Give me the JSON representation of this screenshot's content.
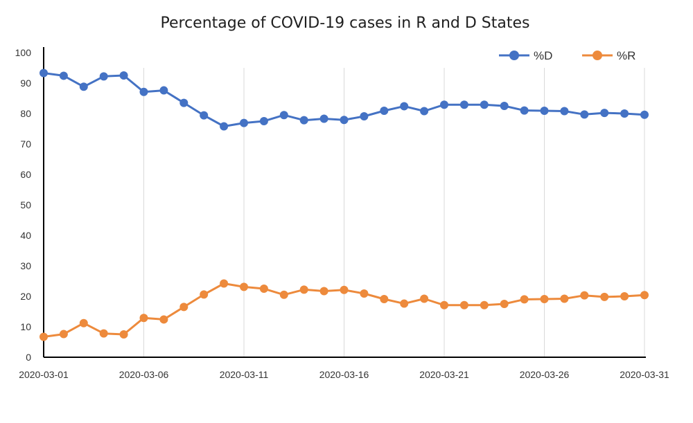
{
  "chart_data": {
    "type": "line",
    "title": "Percentage of COVID-19 cases in R and D States",
    "xlabel": "",
    "ylabel": "",
    "ylim": [
      0,
      100
    ],
    "y_ticks": [
      0,
      10,
      20,
      30,
      40,
      50,
      60,
      70,
      80,
      90,
      100
    ],
    "x_tick_labels": [
      "2020-03-01",
      "2020-03-06",
      "2020-03-11",
      "2020-03-16",
      "2020-03-21",
      "2020-03-26",
      "2020-03-31"
    ],
    "grid": "vertical",
    "legend_position": "top-right",
    "x": [
      "2020-03-01",
      "2020-03-02",
      "2020-03-03",
      "2020-03-04",
      "2020-03-05",
      "2020-03-06",
      "2020-03-07",
      "2020-03-08",
      "2020-03-09",
      "2020-03-10",
      "2020-03-11",
      "2020-03-12",
      "2020-03-13",
      "2020-03-14",
      "2020-03-15",
      "2020-03-16",
      "2020-03-17",
      "2020-03-18",
      "2020-03-19",
      "2020-03-20",
      "2020-03-21",
      "2020-03-22",
      "2020-03-23",
      "2020-03-24",
      "2020-03-25",
      "2020-03-26",
      "2020-03-27",
      "2020-03-28",
      "2020-03-29",
      "2020-03-30",
      "2020-03-31"
    ],
    "series": [
      {
        "name": "%D",
        "color": "#4472c4",
        "values": [
          93.3,
          92.4,
          88.8,
          92.2,
          92.5,
          87.1,
          87.6,
          83.5,
          79.4,
          75.8,
          76.9,
          77.5,
          79.5,
          77.8,
          78.3,
          77.9,
          79.1,
          80.9,
          82.4,
          80.8,
          82.9,
          82.9,
          82.9,
          82.5,
          81.0,
          80.9,
          80.8,
          79.7,
          80.2,
          80.0,
          79.6
        ]
      },
      {
        "name": "%R",
        "color": "#ed8a3c",
        "values": [
          6.7,
          7.6,
          11.2,
          7.8,
          7.5,
          12.9,
          12.4,
          16.5,
          20.6,
          24.2,
          23.1,
          22.5,
          20.5,
          22.2,
          21.7,
          22.1,
          20.9,
          19.1,
          17.6,
          19.2,
          17.1,
          17.1,
          17.1,
          17.5,
          19.0,
          19.1,
          19.2,
          20.3,
          19.8,
          20.0,
          20.4
        ]
      }
    ]
  }
}
